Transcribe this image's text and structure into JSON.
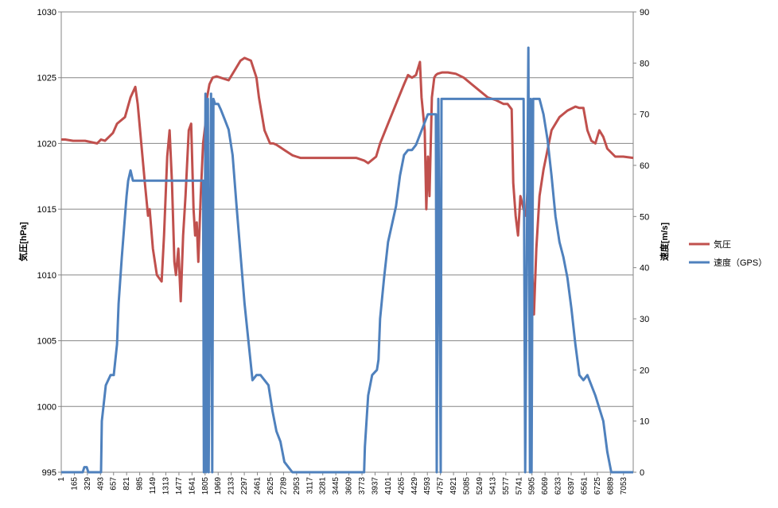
{
  "chart_data": {
    "type": "line",
    "title": "",
    "ylabel": "気圧[hPa]",
    "y2label": "速度[m/s]",
    "ylim": [
      995,
      1030
    ],
    "y2lim": [
      0,
      90
    ],
    "yticks": [
      995,
      1000,
      1005,
      1010,
      1015,
      1020,
      1025,
      1030
    ],
    "y2ticks": [
      0,
      10,
      20,
      30,
      40,
      50,
      60,
      70,
      80,
      90
    ],
    "xlim": [
      1,
      7175
    ],
    "xticks": [
      "1",
      "165",
      "329",
      "493",
      "657",
      "821",
      "985",
      "1149",
      "1313",
      "1477",
      "1641",
      "1805",
      "1969",
      "2133",
      "2297",
      "2461",
      "2625",
      "2789",
      "2953",
      "3117",
      "3281",
      "3445",
      "3609",
      "3773",
      "3937",
      "4101",
      "4265",
      "4429",
      "4593",
      "4757",
      "4921",
      "5085",
      "5249",
      "5413",
      "5577",
      "5741",
      "5905",
      "6069",
      "6233",
      "6397",
      "6561",
      "6725",
      "6889",
      "7053"
    ],
    "grid": "horizontal",
    "legend_position": "right",
    "series": [
      {
        "name": "気圧",
        "axis": "left",
        "color": "#C0504D",
        "x": [
          1,
          50,
          150,
          300,
          450,
          500,
          550,
          650,
          700,
          800,
          870,
          930,
          960,
          990,
          1050,
          1090,
          1110,
          1150,
          1200,
          1260,
          1290,
          1330,
          1360,
          1390,
          1420,
          1440,
          1470,
          1500,
          1530,
          1560,
          1600,
          1630,
          1660,
          1680,
          1700,
          1720,
          1750,
          1780,
          1810,
          1830,
          1860,
          1900,
          1950,
          2000,
          2100,
          2200,
          2250,
          2300,
          2380,
          2450,
          2480,
          2550,
          2620,
          2660,
          2700,
          2750,
          2800,
          2850,
          2900,
          2950,
          3000,
          3200,
          3400,
          3600,
          3700,
          3800,
          3850,
          3950,
          4000,
          4100,
          4200,
          4300,
          4350,
          4400,
          4450,
          4500,
          4520,
          4560,
          4580,
          4600,
          4620,
          4650,
          4680,
          4700,
          4720,
          4780,
          4850,
          4950,
          5050,
          5150,
          5250,
          5350,
          5450,
          5550,
          5600,
          5650,
          5670,
          5700,
          5730,
          5760,
          5800,
          5830,
          5850,
          5880,
          5900,
          5910,
          5930,
          5960,
          6000,
          6050,
          6150,
          6250,
          6350,
          6450,
          6500,
          6550,
          6600,
          6650,
          6700,
          6750,
          6800,
          6850,
          6900,
          6950,
          7050,
          7175
        ],
        "values": [
          1020.3,
          1020.3,
          1020.2,
          1020.2,
          1020.0,
          1020.3,
          1020.2,
          1020.8,
          1021.5,
          1022.0,
          1023.5,
          1024.3,
          1023.0,
          1021.0,
          1017.0,
          1014.5,
          1015.0,
          1012.0,
          1010.0,
          1009.5,
          1013.0,
          1019.0,
          1021.0,
          1017.0,
          1011.0,
          1010.0,
          1012.0,
          1008.0,
          1013.0,
          1016.0,
          1021.0,
          1021.5,
          1015.0,
          1013.0,
          1014.0,
          1011.0,
          1016.0,
          1020.0,
          1021.5,
          1023.5,
          1024.5,
          1025.0,
          1025.1,
          1025.0,
          1024.8,
          1025.8,
          1026.3,
          1026.5,
          1026.3,
          1025.0,
          1023.5,
          1021.0,
          1020.0,
          1020.0,
          1019.9,
          1019.7,
          1019.5,
          1019.3,
          1019.1,
          1019.0,
          1018.9,
          1018.9,
          1018.9,
          1018.9,
          1018.9,
          1018.7,
          1018.5,
          1019.0,
          1020.0,
          1021.5,
          1023.0,
          1024.5,
          1025.2,
          1025.0,
          1025.2,
          1026.2,
          1023.5,
          1021.0,
          1015.0,
          1019.0,
          1016.0,
          1023.5,
          1025.0,
          1025.2,
          1025.3,
          1025.4,
          1025.4,
          1025.3,
          1025.0,
          1024.5,
          1024.0,
          1023.5,
          1023.3,
          1023.0,
          1023.0,
          1022.6,
          1017.0,
          1014.5,
          1013.0,
          1016.0,
          1015.0,
          1014.5,
          1016.5,
          1011.0,
          1009.0,
          1010.0,
          1007.0,
          1012.0,
          1016.0,
          1018.0,
          1021.0,
          1022.0,
          1022.5,
          1022.8,
          1022.7,
          1022.7,
          1021.0,
          1020.2,
          1020.0,
          1021.0,
          1020.5,
          1019.6,
          1019.3,
          1019.0,
          1019.0,
          1018.9
        ]
      },
      {
        "name": "速度（GPS）",
        "axis": "right",
        "color": "#4F81BD",
        "x": [
          1,
          270,
          290,
          320,
          340,
          500,
          510,
          560,
          620,
          660,
          700,
          720,
          760,
          800,
          820,
          840,
          870,
          900,
          930,
          1500,
          1700,
          1780,
          1790,
          1810,
          1820,
          1840,
          1850,
          1880,
          1895,
          1910,
          1930,
          1970,
          2000,
          2050,
          2100,
          2150,
          2200,
          2300,
          2400,
          2450,
          2500,
          2550,
          2600,
          2650,
          2700,
          2750,
          2800,
          2850,
          2900,
          2950,
          3000,
          3100,
          3150,
          3800,
          3810,
          3850,
          3900,
          3960,
          3980,
          4000,
          4050,
          4100,
          4200,
          4250,
          4300,
          4350,
          4400,
          4450,
          4500,
          4550,
          4600,
          4650,
          4700,
          4710,
          4730,
          4760,
          4770,
          4800,
          4900,
          5000,
          5100,
          5200,
          5300,
          5350,
          5500,
          5600,
          5700,
          5750,
          5800,
          5820,
          5860,
          5880,
          5890,
          5900,
          5920,
          5950,
          5970,
          6000,
          6050,
          6100,
          6150,
          6200,
          6250,
          6300,
          6350,
          6400,
          6450,
          6500,
          6550,
          6600,
          6700,
          6800,
          6850,
          6900,
          6950,
          7000,
          7100,
          7175
        ],
        "values": [
          0,
          0,
          1,
          1,
          0,
          0,
          10,
          17,
          19,
          19,
          25,
          33,
          42,
          50,
          54,
          57,
          59,
          57,
          57,
          57,
          57,
          57,
          0,
          74,
          0,
          73,
          0,
          74,
          0,
          73,
          72,
          72,
          71,
          69,
          67,
          62,
          52,
          33,
          18,
          19,
          19,
          18,
          17,
          12,
          8,
          6,
          2,
          1,
          0,
          0,
          0,
          0,
          0,
          0,
          5,
          15,
          19,
          20,
          22,
          30,
          38,
          45,
          52,
          58,
          62,
          63,
          63,
          64,
          66,
          68,
          70,
          70,
          70,
          0,
          73,
          0,
          73,
          73,
          73,
          73,
          73,
          73,
          73,
          73,
          73,
          73,
          73,
          73,
          73,
          0,
          83,
          0,
          73,
          0,
          73,
          73,
          73,
          73,
          70,
          65,
          58,
          50,
          45,
          42,
          38,
          32,
          25,
          19,
          18,
          19,
          15,
          10,
          4,
          0,
          0,
          0,
          0,
          0
        ]
      }
    ]
  }
}
